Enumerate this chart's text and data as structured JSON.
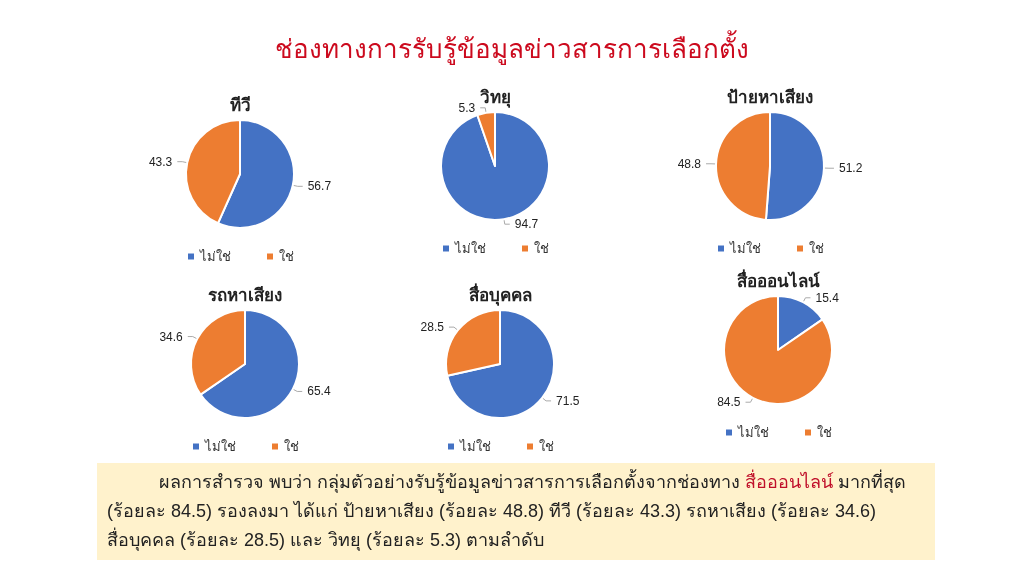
{
  "chart_data": [
    {
      "type": "other",
      "title": "ช่องทางการรับรู้ข้อมูลข่าวสารการเลือกตั้ง"
    },
    {
      "type": "pie",
      "title": "ทีวี",
      "categories": [
        "ไม่ใช่",
        "ใช่"
      ],
      "values": [
        56.7,
        43.3
      ],
      "colors": [
        "#4472c4",
        "#ed7d31"
      ],
      "data_labels": true,
      "legend": "bottom"
    },
    {
      "type": "pie",
      "title": "วิทยุ",
      "categories": [
        "ไม่ใช่",
        "ใช่"
      ],
      "values": [
        94.7,
        5.3
      ],
      "colors": [
        "#4472c4",
        "#ed7d31"
      ],
      "data_labels": true,
      "legend": "bottom"
    },
    {
      "type": "pie",
      "title": "ป้ายหาเสียง",
      "categories": [
        "ไม่ใช่",
        "ใช่"
      ],
      "values": [
        51.2,
        48.8
      ],
      "colors": [
        "#4472c4",
        "#ed7d31"
      ],
      "data_labels": true,
      "legend": "bottom"
    },
    {
      "type": "pie",
      "title": "รถหาเสียง",
      "categories": [
        "ไม่ใช่",
        "ใช่"
      ],
      "values": [
        65.4,
        34.6
      ],
      "colors": [
        "#4472c4",
        "#ed7d31"
      ],
      "data_labels": true,
      "legend": "bottom"
    },
    {
      "type": "pie",
      "title": "สื่อบุคคล",
      "categories": [
        "ไม่ใช่",
        "ใช่"
      ],
      "values": [
        71.5,
        28.5
      ],
      "colors": [
        "#4472c4",
        "#ed7d31"
      ],
      "data_labels": true,
      "legend": "bottom"
    },
    {
      "type": "pie",
      "title": "สื่อออนไลน์",
      "categories": [
        "ไม่ใช่",
        "ใช่"
      ],
      "values": [
        15.4,
        84.5
      ],
      "colors": [
        "#4472c4",
        "#ed7d31"
      ],
      "data_labels": true,
      "legend": "bottom"
    },
    {
      "type": "other",
      "annotations": [
        "ผลการสำรวจ พบว่า กลุ่มตัวอย่างรับรู้ข้อมูลข่าวสารการเลือกตั้งจากช่องทาง",
        "สื่อออนไลน์",
        "มากที่สุด",
        "(ร้อยละ 84.5) รองลงมา ได้แก่ ป้ายหาเสียง (ร้อยละ 48.8) ทีวี (ร้อยละ 43.3) รถหาเสียง (ร้อยละ 34.6)",
        "สื่อบุคคล (ร้อยละ 28.5) และ วิทยุ (ร้อยละ 5.3) ตามลำดับ"
      ]
    }
  ]
}
